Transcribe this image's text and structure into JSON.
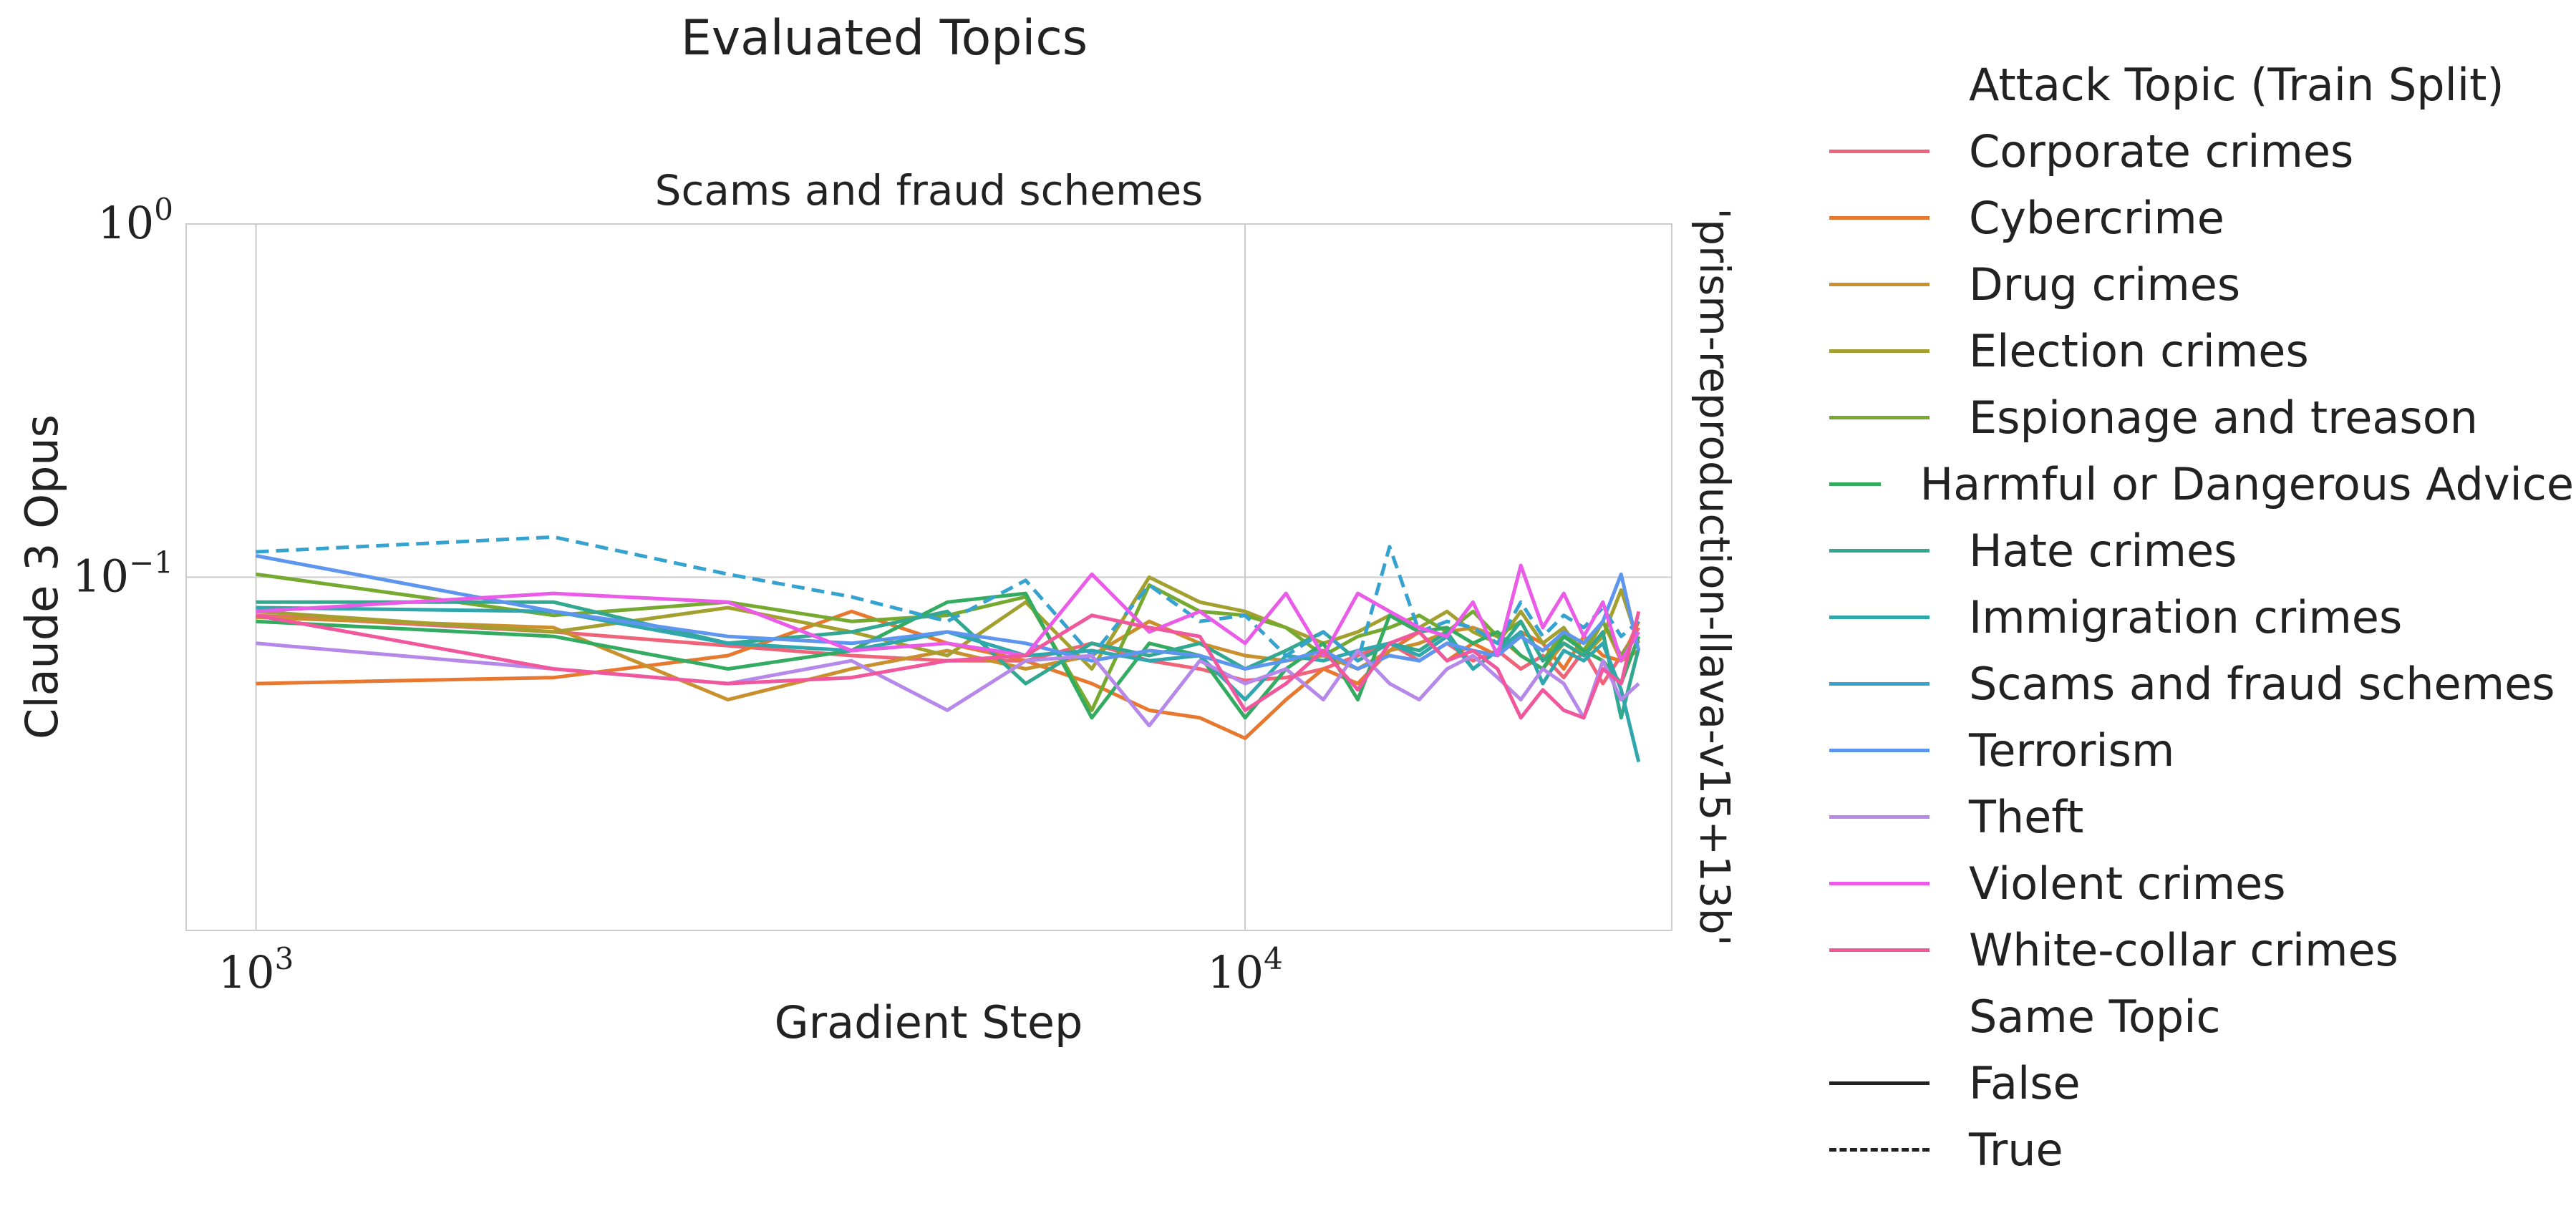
{
  "suptitle": "Evaluated Topics",
  "chart_data": {
    "type": "line",
    "title": "Scams and fraud schemes",
    "xlabel": "Gradient Step",
    "ylabel": "Claude 3 Opus",
    "row_label": "'prism-reproduction-llava-v15+13b'",
    "xscale": "log",
    "yscale": "log",
    "xlim": [
      850,
      27000
    ],
    "ylim": [
      0.01,
      1
    ],
    "xticks": [
      {
        "value": 1000,
        "label": "10^3"
      },
      {
        "value": 10000,
        "label": "10^4"
      }
    ],
    "yticks": [
      {
        "value": 1,
        "label": "10^0"
      },
      {
        "value": 0.1,
        "label": "10^-1"
      }
    ],
    "grid": true,
    "legend_placement": "outside-right",
    "legend_title": "Attack Topic (Train Split)",
    "style_legend_title": "Same Topic",
    "style_legend": [
      {
        "label": "False",
        "dash": "solid"
      },
      {
        "label": "True",
        "dash": "dashed"
      }
    ],
    "x": [
      1000,
      2000,
      3000,
      4000,
      5000,
      6000,
      7000,
      8000,
      9000,
      10000,
      11000,
      12000,
      13000,
      14000,
      15000,
      16000,
      17000,
      18000,
      19000,
      20000,
      21000,
      22000,
      23000,
      24000,
      25000
    ],
    "series": [
      {
        "name": "Corporate crimes",
        "color": "#f0647a",
        "dash": "solid",
        "values": [
          0.078,
          0.07,
          0.064,
          0.06,
          0.058,
          0.058,
          0.065,
          0.058,
          0.055,
          0.051,
          0.052,
          0.055,
          0.06,
          0.065,
          0.058,
          0.065,
          0.058,
          0.062,
          0.055,
          0.06,
          0.052,
          0.062,
          0.05,
          0.06,
          0.072
        ]
      },
      {
        "name": "Cybercrime",
        "color": "#e8782f",
        "dash": "solid",
        "values": [
          0.05,
          0.052,
          0.06,
          0.08,
          0.065,
          0.058,
          0.05,
          0.042,
          0.04,
          0.035,
          0.045,
          0.055,
          0.05,
          0.062,
          0.07,
          0.058,
          0.065,
          0.06,
          0.07,
          0.065,
          0.055,
          0.068,
          0.06,
          0.058,
          0.075
        ]
      },
      {
        "name": "Drug crimes",
        "color": "#c9902d",
        "dash": "solid",
        "values": [
          0.077,
          0.072,
          0.045,
          0.055,
          0.062,
          0.055,
          0.06,
          0.075,
          0.065,
          0.06,
          0.058,
          0.06,
          0.055,
          0.062,
          0.065,
          0.07,
          0.072,
          0.068,
          0.06,
          0.055,
          0.065,
          0.06,
          0.075,
          0.058,
          0.062
        ]
      },
      {
        "name": "Election crimes",
        "color": "#a3a030",
        "dash": "solid",
        "values": [
          0.08,
          0.07,
          0.082,
          0.07,
          0.06,
          0.085,
          0.055,
          0.1,
          0.085,
          0.08,
          0.072,
          0.065,
          0.07,
          0.078,
          0.072,
          0.08,
          0.07,
          0.065,
          0.08,
          0.065,
          0.072,
          0.06,
          0.068,
          0.092,
          0.065
        ]
      },
      {
        "name": "Espionage and treason",
        "color": "#75a92f",
        "dash": "solid",
        "values": [
          0.102,
          0.078,
          0.085,
          0.075,
          0.078,
          0.088,
          0.042,
          0.095,
          0.08,
          0.078,
          0.072,
          0.06,
          0.068,
          0.072,
          0.078,
          0.07,
          0.08,
          0.068,
          0.075,
          0.058,
          0.07,
          0.062,
          0.075,
          0.06,
          0.07
        ]
      },
      {
        "name": "Harmful or Dangerous Advice",
        "color": "#33ab60",
        "dash": "solid",
        "values": [
          0.075,
          0.068,
          0.055,
          0.062,
          0.085,
          0.09,
          0.04,
          0.065,
          0.06,
          0.04,
          0.055,
          0.065,
          0.045,
          0.078,
          0.07,
          0.072,
          0.065,
          0.07,
          0.06,
          0.055,
          0.068,
          0.062,
          0.058,
          0.05,
          0.068
        ]
      },
      {
        "name": "Hate crimes",
        "color": "#33a890",
        "dash": "solid",
        "values": [
          0.085,
          0.085,
          0.065,
          0.07,
          0.08,
          0.05,
          0.065,
          0.06,
          0.065,
          0.055,
          0.062,
          0.07,
          0.058,
          0.065,
          0.062,
          0.07,
          0.055,
          0.062,
          0.075,
          0.058,
          0.065,
          0.06,
          0.07,
          0.04,
          0.063
        ]
      },
      {
        "name": "Immigration crimes",
        "color": "#30a7ac",
        "dash": "solid",
        "values": [
          0.082,
          0.08,
          0.065,
          0.062,
          0.07,
          0.06,
          0.062,
          0.058,
          0.06,
          0.045,
          0.06,
          0.058,
          0.062,
          0.065,
          0.06,
          0.068,
          0.055,
          0.062,
          0.07,
          0.05,
          0.062,
          0.058,
          0.065,
          0.048,
          0.03
        ]
      },
      {
        "name": "Scams and fraud schemes",
        "color": "#36a2d0",
        "dash": "dashed",
        "values": [
          0.118,
          0.13,
          0.102,
          0.088,
          0.075,
          0.098,
          0.06,
          0.095,
          0.075,
          0.078,
          0.06,
          0.07,
          0.058,
          0.122,
          0.07,
          0.075,
          0.072,
          0.065,
          0.085,
          0.068,
          0.078,
          0.072,
          0.082,
          0.068,
          0.075
        ]
      },
      {
        "name": "Terrorism",
        "color": "#5e96ef",
        "dash": "solid",
        "values": [
          0.115,
          0.08,
          0.068,
          0.065,
          0.07,
          0.065,
          0.058,
          0.062,
          0.06,
          0.055,
          0.058,
          0.062,
          0.055,
          0.06,
          0.058,
          0.065,
          0.062,
          0.06,
          0.068,
          0.062,
          0.07,
          0.065,
          0.075,
          0.102,
          0.062
        ]
      },
      {
        "name": "Theft",
        "color": "#b588ea",
        "dash": "solid",
        "values": [
          0.065,
          0.055,
          0.05,
          0.058,
          0.042,
          0.058,
          0.06,
          0.038,
          0.058,
          0.05,
          0.055,
          0.045,
          0.062,
          0.05,
          0.045,
          0.055,
          0.06,
          0.052,
          0.045,
          0.055,
          0.05,
          0.04,
          0.058,
          0.045,
          0.05
        ]
      },
      {
        "name": "Violent crimes",
        "color": "#ea5be8",
        "dash": "solid",
        "values": [
          0.08,
          0.09,
          0.085,
          0.062,
          0.065,
          0.06,
          0.102,
          0.07,
          0.08,
          0.065,
          0.09,
          0.06,
          0.09,
          0.08,
          0.072,
          0.068,
          0.085,
          0.06,
          0.108,
          0.072,
          0.09,
          0.068,
          0.085,
          0.058,
          0.07
        ]
      },
      {
        "name": "White-collar crimes",
        "color": "#f1579d",
        "dash": "solid",
        "values": [
          0.078,
          0.055,
          0.05,
          0.052,
          0.058,
          0.06,
          0.078,
          0.072,
          0.068,
          0.042,
          0.05,
          0.062,
          0.048,
          0.065,
          0.07,
          0.058,
          0.062,
          0.055,
          0.04,
          0.048,
          0.042,
          0.04,
          0.055,
          0.05,
          0.08
        ]
      }
    ]
  }
}
